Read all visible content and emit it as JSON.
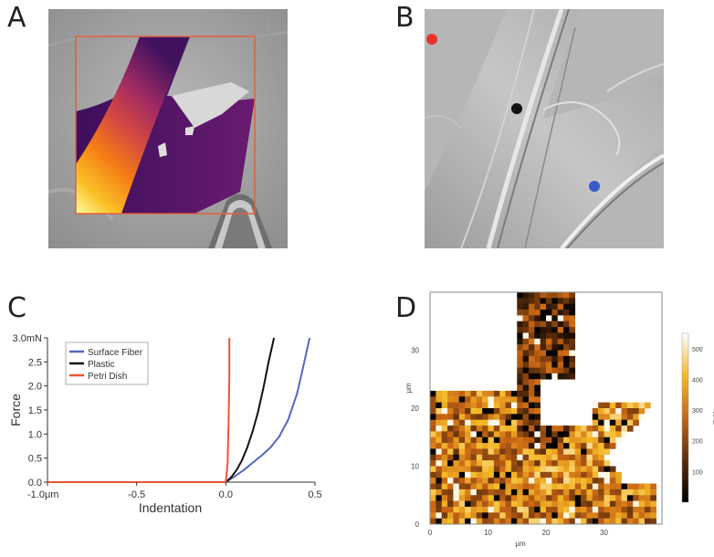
{
  "panels": {
    "a": {
      "letter": "A"
    },
    "b": {
      "letter": "B"
    },
    "c": {
      "letter": "C"
    },
    "d": {
      "letter": "D"
    }
  },
  "colors": {
    "surface_fiber": "#5566c4",
    "plastic": "#111111",
    "petri_dish": "#ee5533",
    "marker_red": "#e8332a",
    "marker_black": "#111111",
    "marker_blue": "#3a5bc7",
    "roi_outline": "#e0603a"
  },
  "chart_data": [
    {
      "panel": "C",
      "type": "line",
      "xlabel": "Indentation",
      "ylabel": "Force",
      "xlim": [
        -1.0,
        0.5
      ],
      "ylim": [
        0,
        3.0
      ],
      "xticks": [
        {
          "value": -1.0,
          "label": "-1.0μm"
        },
        {
          "value": -0.5,
          "label": "-0.5"
        },
        {
          "value": 0.0,
          "label": "0.0"
        },
        {
          "value": 0.5,
          "label": "0.5"
        }
      ],
      "yticks": [
        {
          "value": 3.0,
          "label": "3.0mN"
        },
        {
          "value": 2.5,
          "label": "2.5"
        },
        {
          "value": 2.0,
          "label": "2.0"
        },
        {
          "value": 1.5,
          "label": "1.5"
        },
        {
          "value": 1.0,
          "label": "1.0"
        },
        {
          "value": 0.5,
          "label": "0.5"
        },
        {
          "value": 0.0,
          "label": "0.0"
        }
      ],
      "legend": "top-left",
      "series": [
        {
          "name": "Surface Fiber",
          "color": "#5566c4",
          "x": [
            -1.0,
            0.0,
            0.05,
            0.1,
            0.15,
            0.2,
            0.25,
            0.3,
            0.35,
            0.4,
            0.44,
            0.47
          ],
          "y": [
            0.0,
            0.0,
            0.12,
            0.25,
            0.4,
            0.55,
            0.72,
            0.95,
            1.3,
            1.85,
            2.5,
            3.0
          ]
        },
        {
          "name": "Plastic",
          "color": "#111111",
          "x": [
            -1.0,
            0.0,
            0.03,
            0.06,
            0.09,
            0.12,
            0.15,
            0.18,
            0.21,
            0.24,
            0.27
          ],
          "y": [
            0.0,
            0.0,
            0.1,
            0.25,
            0.45,
            0.72,
            1.05,
            1.45,
            1.95,
            2.5,
            3.0
          ]
        },
        {
          "name": "Petri Dish",
          "color": "#ee5533",
          "x": [
            -1.0,
            -0.5,
            0.0,
            0.01,
            0.015,
            0.02,
            0.02
          ],
          "y": [
            0.0,
            0.0,
            0.0,
            0.4,
            1.2,
            2.2,
            3.0
          ]
        }
      ]
    },
    {
      "panel": "D",
      "type": "heatmap",
      "xlabel": "μm",
      "ylabel": "μm",
      "xlim": [
        0,
        40
      ],
      "ylim": [
        0,
        40
      ],
      "xticks": [
        0,
        10,
        20,
        30
      ],
      "yticks": [
        0,
        10,
        20,
        30
      ],
      "colorbar": {
        "ticks": [
          100,
          200,
          300,
          400,
          500
        ],
        "label": "kPa",
        "range": [
          0,
          550
        ]
      },
      "grid_size": [
        40,
        40
      ]
    }
  ]
}
